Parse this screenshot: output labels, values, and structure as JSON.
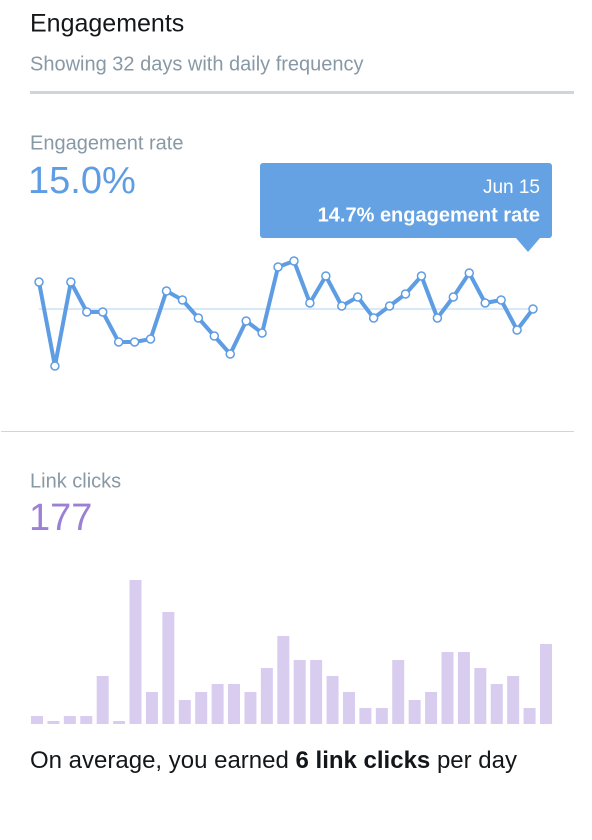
{
  "header": {
    "title": "Engagements",
    "subtitle": "Showing 32 days with daily frequency"
  },
  "chart_data": [
    {
      "type": "line",
      "title": "Engagement rate",
      "summary": "15.0%",
      "color": "#5e9de3",
      "values": [
        15.6,
        12.8,
        15.6,
        14.6,
        14.6,
        13.6,
        13.6,
        13.7,
        15.3,
        15.0,
        14.4,
        13.8,
        13.2,
        14.3,
        13.9,
        16.1,
        16.3,
        14.9,
        15.8,
        14.8,
        15.1,
        14.4,
        14.8,
        15.2,
        15.8,
        14.4,
        15.1,
        15.9,
        14.9,
        15.0,
        14.0,
        14.7
      ],
      "ylim": [
        12,
        17
      ],
      "tooltip": {
        "date": "Jun 15",
        "text": "14.7% engagement rate"
      }
    },
    {
      "type": "bar",
      "title": "Link clicks",
      "summary": 177,
      "color": "#d9cdef",
      "values": [
        1,
        0,
        1,
        1,
        6,
        0,
        18,
        4,
        14,
        3,
        4,
        5,
        5,
        4,
        7,
        11,
        8,
        8,
        6,
        4,
        2,
        2,
        8,
        3,
        4,
        9,
        9,
        7,
        5,
        6,
        2,
        10
      ],
      "ylim": [
        0,
        18
      ]
    }
  ],
  "footer": {
    "prefix": "On average, you earned ",
    "highlight": "6 link clicks",
    "suffix": " per day"
  }
}
